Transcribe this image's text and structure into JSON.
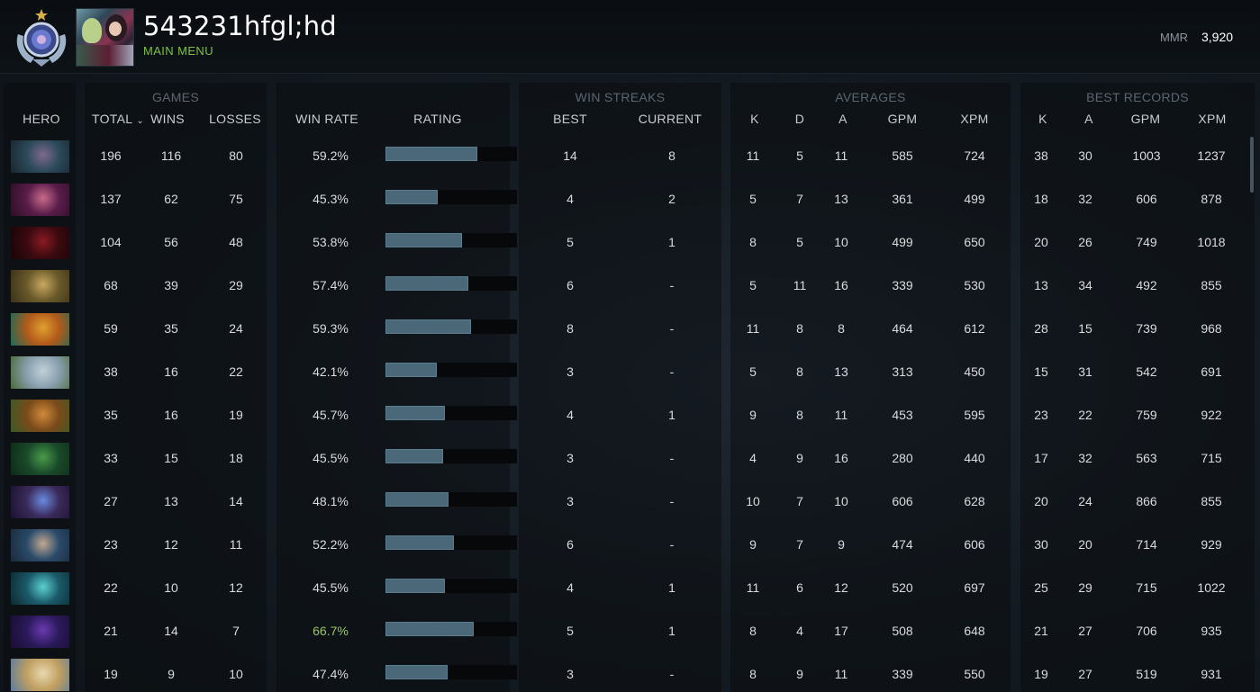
{
  "profile": {
    "username": "543231hfgl;hd",
    "menu_link": "MAIN MENU",
    "mmr_label": "MMR",
    "mmr_value": "3,920"
  },
  "groups": {
    "games": "GAMES",
    "win_streaks": "WIN STREAKS",
    "averages": "AVERAGES",
    "best_records": "BEST RECORDS"
  },
  "columns": {
    "hero": "HERO",
    "total": "TOTAL",
    "wins": "WINS",
    "losses": "LOSSES",
    "win_rate": "WIN RATE",
    "rating": "RATING",
    "best": "BEST",
    "current": "CURRENT",
    "avg_k": "K",
    "avg_d": "D",
    "avg_a": "A",
    "avg_gpm": "GPM",
    "avg_xpm": "XPM",
    "rec_k": "K",
    "rec_a": "A",
    "rec_gpm": "GPM",
    "rec_xpm": "XPM"
  },
  "sort_icon": "chevron-down-icon",
  "colors": {
    "accent_green": "#7fbf4a",
    "highlight_winrate": "#9bc36a",
    "rating_bar": "#4b6879"
  },
  "rows": [
    {
      "total": "196",
      "wins": "116",
      "losses": "80",
      "winrate": "59.2%",
      "rating": 0.7,
      "best": "14",
      "current": "8",
      "k": "11",
      "d": "5",
      "a": "11",
      "gpm": "585",
      "xpm": "724",
      "rk": "38",
      "ra": "30",
      "rgpm": "1003",
      "rxpm": "1237",
      "thumb": [
        "#2c4a5a",
        "#7e6a8e",
        "#1a2630"
      ]
    },
    {
      "total": "137",
      "wins": "62",
      "losses": "75",
      "winrate": "45.3%",
      "rating": 0.4,
      "best": "4",
      "current": "2",
      "k": "5",
      "d": "7",
      "a": "13",
      "gpm": "361",
      "xpm": "499",
      "rk": "18",
      "ra": "32",
      "rgpm": "606",
      "rxpm": "878",
      "thumb": [
        "#5a1d4a",
        "#c96a8a",
        "#2a0f24"
      ]
    },
    {
      "total": "104",
      "wins": "56",
      "losses": "48",
      "winrate": "53.8%",
      "rating": 0.58,
      "best": "5",
      "current": "1",
      "k": "8",
      "d": "5",
      "a": "10",
      "gpm": "499",
      "xpm": "650",
      "rk": "20",
      "ra": "26",
      "rgpm": "749",
      "rxpm": "1018",
      "thumb": [
        "#3a0a10",
        "#8a1a22",
        "#160607"
      ]
    },
    {
      "total": "68",
      "wins": "39",
      "losses": "29",
      "winrate": "57.4%",
      "rating": 0.63,
      "best": "6",
      "current": "-",
      "k": "5",
      "d": "11",
      "a": "16",
      "gpm": "339",
      "xpm": "530",
      "rk": "13",
      "ra": "34",
      "rgpm": "492",
      "rxpm": "855",
      "thumb": [
        "#6a5a2a",
        "#c8a860",
        "#3a301a"
      ]
    },
    {
      "total": "59",
      "wins": "35",
      "losses": "24",
      "winrate": "59.3%",
      "rating": 0.65,
      "best": "8",
      "current": "-",
      "k": "11",
      "d": "8",
      "a": "8",
      "gpm": "464",
      "xpm": "612",
      "rk": "28",
      "ra": "15",
      "rgpm": "739",
      "rxpm": "968",
      "thumb": [
        "#b25a1a",
        "#e0a030",
        "#1a6a5a"
      ]
    },
    {
      "total": "38",
      "wins": "16",
      "losses": "22",
      "winrate": "42.1%",
      "rating": 0.39,
      "best": "3",
      "current": "-",
      "k": "5",
      "d": "8",
      "a": "13",
      "gpm": "313",
      "xpm": "450",
      "rk": "15",
      "ra": "31",
      "rgpm": "542",
      "rxpm": "691",
      "thumb": [
        "#8aa0b0",
        "#c0d0d8",
        "#4a6a3a"
      ]
    },
    {
      "total": "35",
      "wins": "16",
      "losses": "19",
      "winrate": "45.7%",
      "rating": 0.45,
      "best": "4",
      "current": "1",
      "k": "9",
      "d": "8",
      "a": "11",
      "gpm": "453",
      "xpm": "595",
      "rk": "23",
      "ra": "22",
      "rgpm": "759",
      "rxpm": "922",
      "thumb": [
        "#7a4a1a",
        "#d08a3a",
        "#3a5a2a"
      ]
    },
    {
      "total": "33",
      "wins": "15",
      "losses": "18",
      "winrate": "45.5%",
      "rating": 0.44,
      "best": "3",
      "current": "-",
      "k": "4",
      "d": "9",
      "a": "16",
      "gpm": "280",
      "xpm": "440",
      "rk": "17",
      "ra": "32",
      "rgpm": "563",
      "rxpm": "715",
      "thumb": [
        "#1a4a2a",
        "#4a9a4a",
        "#0e2a18"
      ]
    },
    {
      "total": "27",
      "wins": "13",
      "losses": "14",
      "winrate": "48.1%",
      "rating": 0.48,
      "best": "3",
      "current": "-",
      "k": "10",
      "d": "7",
      "a": "10",
      "gpm": "606",
      "xpm": "628",
      "rk": "20",
      "ra": "24",
      "rgpm": "866",
      "rxpm": "855",
      "thumb": [
        "#3a2a5a",
        "#6a8ae0",
        "#1a1230"
      ]
    },
    {
      "total": "23",
      "wins": "12",
      "losses": "11",
      "winrate": "52.2%",
      "rating": 0.52,
      "best": "6",
      "current": "-",
      "k": "9",
      "d": "7",
      "a": "9",
      "gpm": "474",
      "xpm": "606",
      "rk": "30",
      "ra": "20",
      "rgpm": "714",
      "rxpm": "929",
      "thumb": [
        "#2a4a6a",
        "#c0a890",
        "#1a2a3a"
      ]
    },
    {
      "total": "22",
      "wins": "10",
      "losses": "12",
      "winrate": "45.5%",
      "rating": 0.45,
      "best": "4",
      "current": "1",
      "k": "11",
      "d": "6",
      "a": "12",
      "gpm": "520",
      "xpm": "697",
      "rk": "25",
      "ra": "29",
      "rgpm": "715",
      "rxpm": "1022",
      "thumb": [
        "#1a5a6a",
        "#5ad0d0",
        "#0e2a30"
      ]
    },
    {
      "total": "21",
      "wins": "14",
      "losses": "7",
      "winrate": "66.7%",
      "rating": 0.67,
      "best": "5",
      "current": "1",
      "k": "8",
      "d": "4",
      "a": "17",
      "gpm": "508",
      "xpm": "648",
      "rk": "21",
      "ra": "27",
      "rgpm": "706",
      "rxpm": "935",
      "good": true,
      "thumb": [
        "#2a1a5a",
        "#6a3ab0",
        "#1a0e30"
      ]
    },
    {
      "total": "19",
      "wins": "9",
      "losses": "10",
      "winrate": "47.4%",
      "rating": 0.47,
      "best": "3",
      "current": "-",
      "k": "8",
      "d": "9",
      "a": "11",
      "gpm": "339",
      "xpm": "550",
      "rk": "19",
      "ra": "27",
      "rgpm": "519",
      "rxpm": "931",
      "thumb": [
        "#c0a060",
        "#e8d8b0",
        "#5a7aa0"
      ]
    }
  ]
}
